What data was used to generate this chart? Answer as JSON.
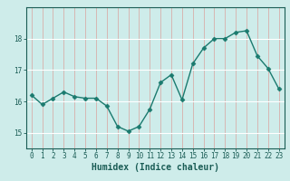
{
  "x": [
    0,
    1,
    2,
    3,
    4,
    5,
    6,
    7,
    8,
    9,
    10,
    11,
    12,
    13,
    14,
    15,
    16,
    17,
    18,
    19,
    20,
    21,
    22,
    23
  ],
  "y": [
    16.2,
    15.9,
    16.1,
    16.3,
    16.15,
    16.1,
    16.1,
    15.85,
    15.2,
    15.05,
    15.2,
    15.75,
    16.6,
    16.85,
    16.05,
    17.2,
    17.7,
    18.0,
    18.0,
    18.2,
    18.25,
    17.45,
    17.05,
    16.4
  ],
  "line_color": "#1a7a6e",
  "marker": "D",
  "marker_size": 2.5,
  "linewidth": 1.0,
  "xlabel": "Humidex (Indice chaleur)",
  "ylim": [
    14.5,
    19.0
  ],
  "xlim": [
    -0.5,
    23.5
  ],
  "yticks": [
    15,
    16,
    17,
    18
  ],
  "xticks": [
    0,
    1,
    2,
    3,
    4,
    5,
    6,
    7,
    8,
    9,
    10,
    11,
    12,
    13,
    14,
    15,
    16,
    17,
    18,
    19,
    20,
    21,
    22,
    23
  ],
  "bg_color": "#ceecea",
  "grid_color": "#b8dbd8",
  "white_grid": "#ffffff",
  "tick_color": "#1a5c55",
  "label_fontsize": 7,
  "tick_fontsize": 5.5
}
